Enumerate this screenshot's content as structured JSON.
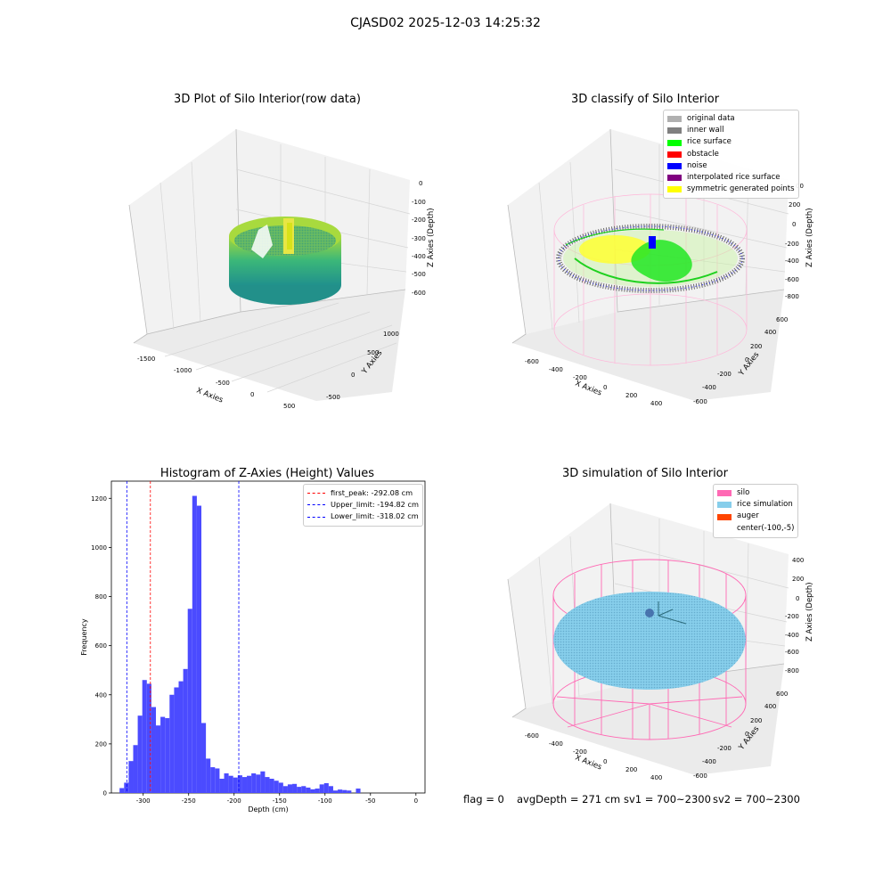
{
  "figure": {
    "suptitle": "CJASD02 2025-12-03 14:25:32",
    "status": {
      "flag": "flag = 0",
      "avg_depth": "avgDepth = 271 cm",
      "sv1": "sv1 = 700~2300",
      "sv2": "sv2 = 700~2300"
    }
  },
  "panels": {
    "raw": {
      "title": "3D Plot of Silo Interior(row data)",
      "xlabel": "X Axies",
      "ylabel": "Y Axies",
      "zlabel": "Z Axies (Depth)",
      "xticks": [
        "-1500",
        "-1000",
        "-500",
        "0",
        "500"
      ],
      "yticks": [
        "-500",
        "0",
        "500",
        "1000"
      ],
      "zticks": [
        "0",
        "-100",
        "-200",
        "-300",
        "-400",
        "-500",
        "-600"
      ],
      "colormap": [
        "#440154",
        "#21918c",
        "#5ec962",
        "#fde725"
      ]
    },
    "classify": {
      "title": "3D classify of Silo Interior",
      "xlabel": "X Axies",
      "ylabel": "Y Axies",
      "zlabel": "Z Axies (Depth)",
      "xticks": [
        "-600",
        "-400",
        "-200",
        "0",
        "200",
        "400"
      ],
      "yticks": [
        "-600",
        "-400",
        "-200",
        "0",
        "200",
        "400",
        "600"
      ],
      "zticks": [
        "200",
        "0",
        "-200",
        "-400",
        "-600",
        "-800"
      ],
      "z_top_partial": "00",
      "legend": [
        {
          "label": "original data",
          "color": "#b0b0b0"
        },
        {
          "label": "inner wall",
          "color": "#808080"
        },
        {
          "label": "rice surface",
          "color": "#00ff00"
        },
        {
          "label": "obstacle",
          "color": "#ff0000"
        },
        {
          "label": "noise",
          "color": "#0000ff"
        },
        {
          "label": "interpolated rice surface",
          "color": "#800080"
        },
        {
          "label": "symmetric generated points",
          "color": "#ffff00"
        }
      ]
    },
    "histogram": {
      "title": "Histogram of Z-Axies (Height) Values",
      "xlabel": "Depth (cm)",
      "ylabel": "Frequency",
      "legend": [
        {
          "label": "first_peak: -292.08 cm",
          "color": "#ff0000"
        },
        {
          "label": "Upper_limit: -194.82 cm",
          "color": "#0000ff"
        },
        {
          "label": "Lower_limit: -318.02 cm",
          "color": "#0000ff"
        }
      ]
    },
    "simulation": {
      "title": "3D simulation of Silo Interior",
      "xlabel": "X Axies",
      "ylabel": "Y Axies",
      "zlabel": "Z Axies (Depth)",
      "xticks": [
        "-600",
        "-400",
        "-200",
        "0",
        "200",
        "400"
      ],
      "yticks": [
        "-600",
        "-400",
        "-200",
        "0",
        "200",
        "400",
        "600"
      ],
      "zticks": [
        "400",
        "200",
        "0",
        "-200",
        "-400",
        "-600",
        "-800"
      ],
      "legend": [
        {
          "label": "silo",
          "color": "#ff69b4"
        },
        {
          "label": "rice simulation",
          "color": "#87ceeb"
        },
        {
          "label": "auger",
          "color": "#ff4500"
        },
        {
          "label": "center(-100,-5)",
          "color": ""
        }
      ]
    }
  },
  "chart_data": [
    {
      "type": "scatter",
      "title": "3D Plot of Silo Interior(row data)",
      "xlabel": "X Axies",
      "ylabel": "Y Axies",
      "zlabel": "Z Axies (Depth)",
      "xlim": [
        -1700,
        600
      ],
      "ylim": [
        -600,
        1300
      ],
      "zlim": [
        -650,
        20
      ]
    },
    {
      "type": "scatter",
      "title": "3D classify of Silo Interior",
      "xlabel": "X Axies",
      "ylabel": "Y Axies",
      "zlabel": "Z Axies (Depth)",
      "xlim": [
        -700,
        500
      ],
      "ylim": [
        -700,
        700
      ],
      "zlim": [
        -900,
        300
      ]
    },
    {
      "type": "bar",
      "title": "Histogram of Z-Axies (Height) Values",
      "xlabel": "Depth (cm)",
      "ylabel": "Frequency",
      "xlim": [
        -335,
        10
      ],
      "ylim": [
        0,
        1270
      ],
      "xticks": [
        -300,
        -250,
        -200,
        -150,
        -100,
        -50,
        0
      ],
      "yticks": [
        0,
        200,
        400,
        600,
        800,
        1000,
        1200
      ],
      "bin_width": 5,
      "bins_start": [
        -326,
        -321,
        -316,
        -311,
        -306,
        -301,
        -296,
        -291,
        -286,
        -281,
        -276,
        -271,
        -266,
        -261,
        -256,
        -251,
        -246,
        -241,
        -236,
        -231,
        -226,
        -221,
        -216,
        -211,
        -206,
        -201,
        -196,
        -191,
        -186,
        -181,
        -176,
        -171,
        -166,
        -161,
        -156,
        -151,
        -146,
        -141,
        -136,
        -131,
        -126,
        -121,
        -116,
        -111,
        -106,
        -101,
        -96,
        -91,
        -86,
        -81,
        -76,
        -71,
        -66,
        -61,
        -56,
        -51,
        -46,
        -41,
        -36,
        -31,
        -26,
        -21,
        -16,
        -11,
        -6,
        -1
      ],
      "values": [
        20,
        42,
        130,
        195,
        315,
        460,
        445,
        350,
        275,
        310,
        305,
        400,
        430,
        455,
        505,
        750,
        1210,
        1170,
        285,
        140,
        105,
        100,
        58,
        80,
        70,
        63,
        72,
        65,
        70,
        80,
        75,
        88,
        65,
        58,
        50,
        42,
        28,
        35,
        37,
        25,
        28,
        22,
        15,
        18,
        35,
        40,
        28,
        10,
        14,
        12,
        10,
        0,
        18,
        0,
        0,
        0,
        0,
        0,
        0,
        0,
        0,
        0,
        0,
        0,
        0,
        0
      ],
      "vlines": [
        {
          "name": "first_peak: -292.08 cm",
          "x": -292.08,
          "color": "#ff0000"
        },
        {
          "name": "Upper_limit: -194.82 cm",
          "x": -194.82,
          "color": "#0000ff"
        },
        {
          "name": "Lower_limit: -318.02 cm",
          "x": -318.02,
          "color": "#0000ff"
        }
      ],
      "bar_color": "#4b4bff",
      "legend_position": "top-right"
    },
    {
      "type": "scatter",
      "title": "3D simulation of Silo Interior",
      "xlabel": "X Axies",
      "ylabel": "Y Axies",
      "zlabel": "Z Axies (Depth)",
      "xlim": [
        -700,
        500
      ],
      "ylim": [
        -700,
        700
      ],
      "zlim": [
        -900,
        450
      ]
    }
  ]
}
